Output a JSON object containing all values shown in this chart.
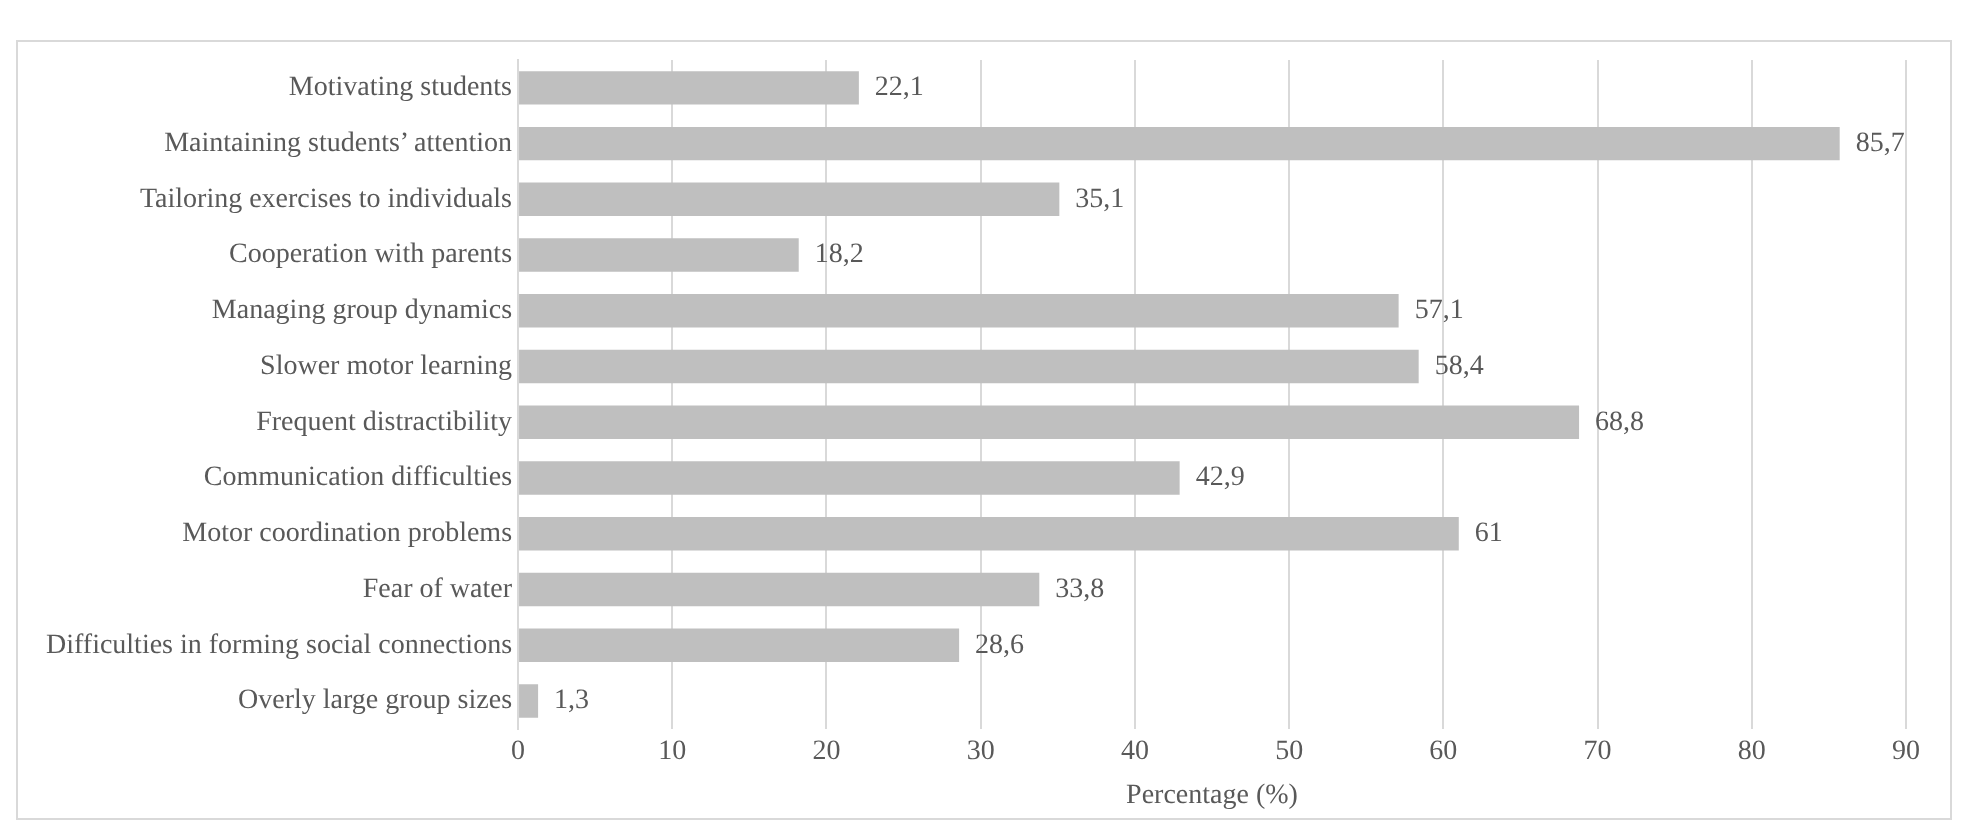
{
  "chart_data": {
    "type": "bar",
    "orientation": "horizontal",
    "xlabel": "Percentage (%)",
    "categories": [
      "Motivating students",
      "Maintaining students’ attention",
      "Tailoring exercises to individuals",
      "Cooperation with parents",
      "Managing group dynamics",
      "Slower motor learning",
      "Frequent distractibility",
      "Communication difficulties",
      "Motor coordination problems",
      "Fear of water",
      "Difficulties in forming social connections",
      "Overly large group sizes"
    ],
    "values": [
      22.1,
      85.7,
      35.1,
      18.2,
      57.1,
      58.4,
      68.8,
      42.9,
      61,
      33.8,
      28.6,
      1.3
    ],
    "value_labels": [
      "22,1",
      "85,7",
      "35,1",
      "18,2",
      "57,1",
      "58,4",
      "68,8",
      "42,9",
      "61",
      "33,8",
      "28,6",
      "1,3"
    ],
    "color": "#bfbfbf",
    "xlim": [
      0,
      90
    ],
    "xticks": [
      0,
      10,
      20,
      30,
      40,
      50,
      60,
      70,
      80,
      90
    ],
    "grid": "x"
  }
}
